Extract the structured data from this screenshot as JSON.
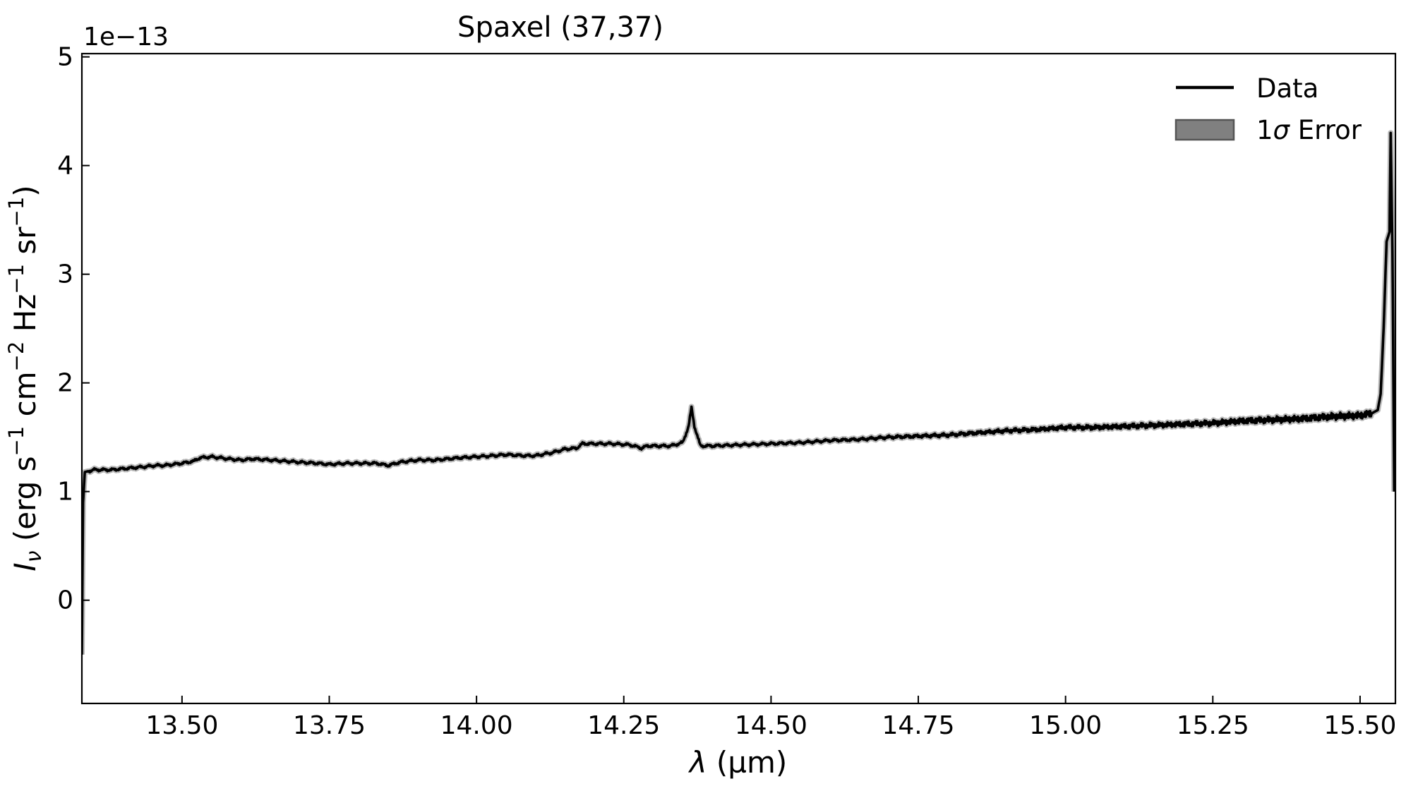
{
  "chart_data": {
    "type": "line",
    "title": "Spaxel (37,37)",
    "xlabel": "λ (µm)",
    "xlabel_parts": {
      "symbol": "λ",
      "unit": " (µm)"
    },
    "ylabel": "Iν (erg s−1 cm−2 Hz−1 sr−1)",
    "ylabel_parts": {
      "symbol": "I",
      "subscript": "ν",
      "open": " (erg s",
      "exp1": "−1",
      "mid1": " cm",
      "exp2": "−2",
      "mid2": " Hz",
      "exp3": "−1",
      "mid3": " sr",
      "exp4": "−1",
      "close": ")"
    },
    "y_offset_label": "1e−13",
    "xlim": [
      13.33,
      15.56
    ],
    "ylim": [
      -0.95,
      5.03
    ],
    "x_ticks": [
      13.5,
      13.75,
      14.0,
      14.25,
      14.5,
      14.75,
      15.0,
      15.25,
      15.5
    ],
    "x_tick_labels": [
      "13.50",
      "13.75",
      "14.00",
      "14.25",
      "14.50",
      "14.75",
      "15.00",
      "15.25",
      "15.50"
    ],
    "y_ticks": [
      0,
      1,
      2,
      3,
      4,
      5
    ],
    "y_tick_labels": [
      "0",
      "1",
      "2",
      "3",
      "4",
      "5"
    ],
    "grid": false,
    "legend_position": "top-right",
    "legend": [
      {
        "label": "Data",
        "kind": "line"
      },
      {
        "label_prefix": "1",
        "label_symbol": "σ",
        "label_suffix": " Error",
        "kind": "patch"
      }
    ],
    "colors": {
      "data": "#000000",
      "error_fill": "#808080"
    },
    "series": [
      {
        "name": "Data",
        "x": [
          13.33,
          13.332,
          13.335,
          13.35,
          13.38,
          13.4,
          13.42,
          13.44,
          13.455,
          13.47,
          13.5,
          13.52,
          13.53,
          13.55,
          13.58,
          13.6,
          13.62,
          13.65,
          13.7,
          13.73,
          13.75,
          13.78,
          13.8,
          13.83,
          13.85,
          13.87,
          13.9,
          13.93,
          13.95,
          13.97,
          14.0,
          14.03,
          14.05,
          14.08,
          14.1,
          14.13,
          14.15,
          14.17,
          14.18,
          14.2,
          14.23,
          14.26,
          14.28,
          14.29,
          14.31,
          14.33,
          14.35,
          14.36,
          14.365,
          14.37,
          14.38,
          14.4,
          14.45,
          14.5,
          14.55,
          14.6,
          14.65,
          14.7,
          14.75,
          14.8,
          14.85,
          14.9,
          14.95,
          15.0,
          15.05,
          15.1,
          15.15,
          15.2,
          15.25,
          15.3,
          15.35,
          15.4,
          15.45,
          15.5,
          15.52,
          15.53,
          15.535,
          15.54,
          15.545,
          15.55,
          15.552,
          15.555,
          15.558
        ],
        "y": [
          -0.5,
          0.9,
          1.18,
          1.2,
          1.2,
          1.21,
          1.22,
          1.23,
          1.24,
          1.24,
          1.26,
          1.28,
          1.31,
          1.32,
          1.3,
          1.29,
          1.3,
          1.29,
          1.27,
          1.26,
          1.25,
          1.26,
          1.26,
          1.26,
          1.24,
          1.27,
          1.29,
          1.29,
          1.3,
          1.31,
          1.32,
          1.33,
          1.34,
          1.33,
          1.33,
          1.36,
          1.39,
          1.4,
          1.44,
          1.44,
          1.44,
          1.43,
          1.4,
          1.42,
          1.42,
          1.42,
          1.45,
          1.6,
          1.77,
          1.6,
          1.42,
          1.42,
          1.43,
          1.44,
          1.45,
          1.47,
          1.48,
          1.5,
          1.51,
          1.52,
          1.54,
          1.56,
          1.57,
          1.59,
          1.59,
          1.6,
          1.61,
          1.62,
          1.63,
          1.65,
          1.66,
          1.67,
          1.69,
          1.7,
          1.72,
          1.75,
          1.9,
          2.5,
          3.3,
          3.39,
          4.3,
          3.2,
          1.0
        ]
      }
    ]
  }
}
